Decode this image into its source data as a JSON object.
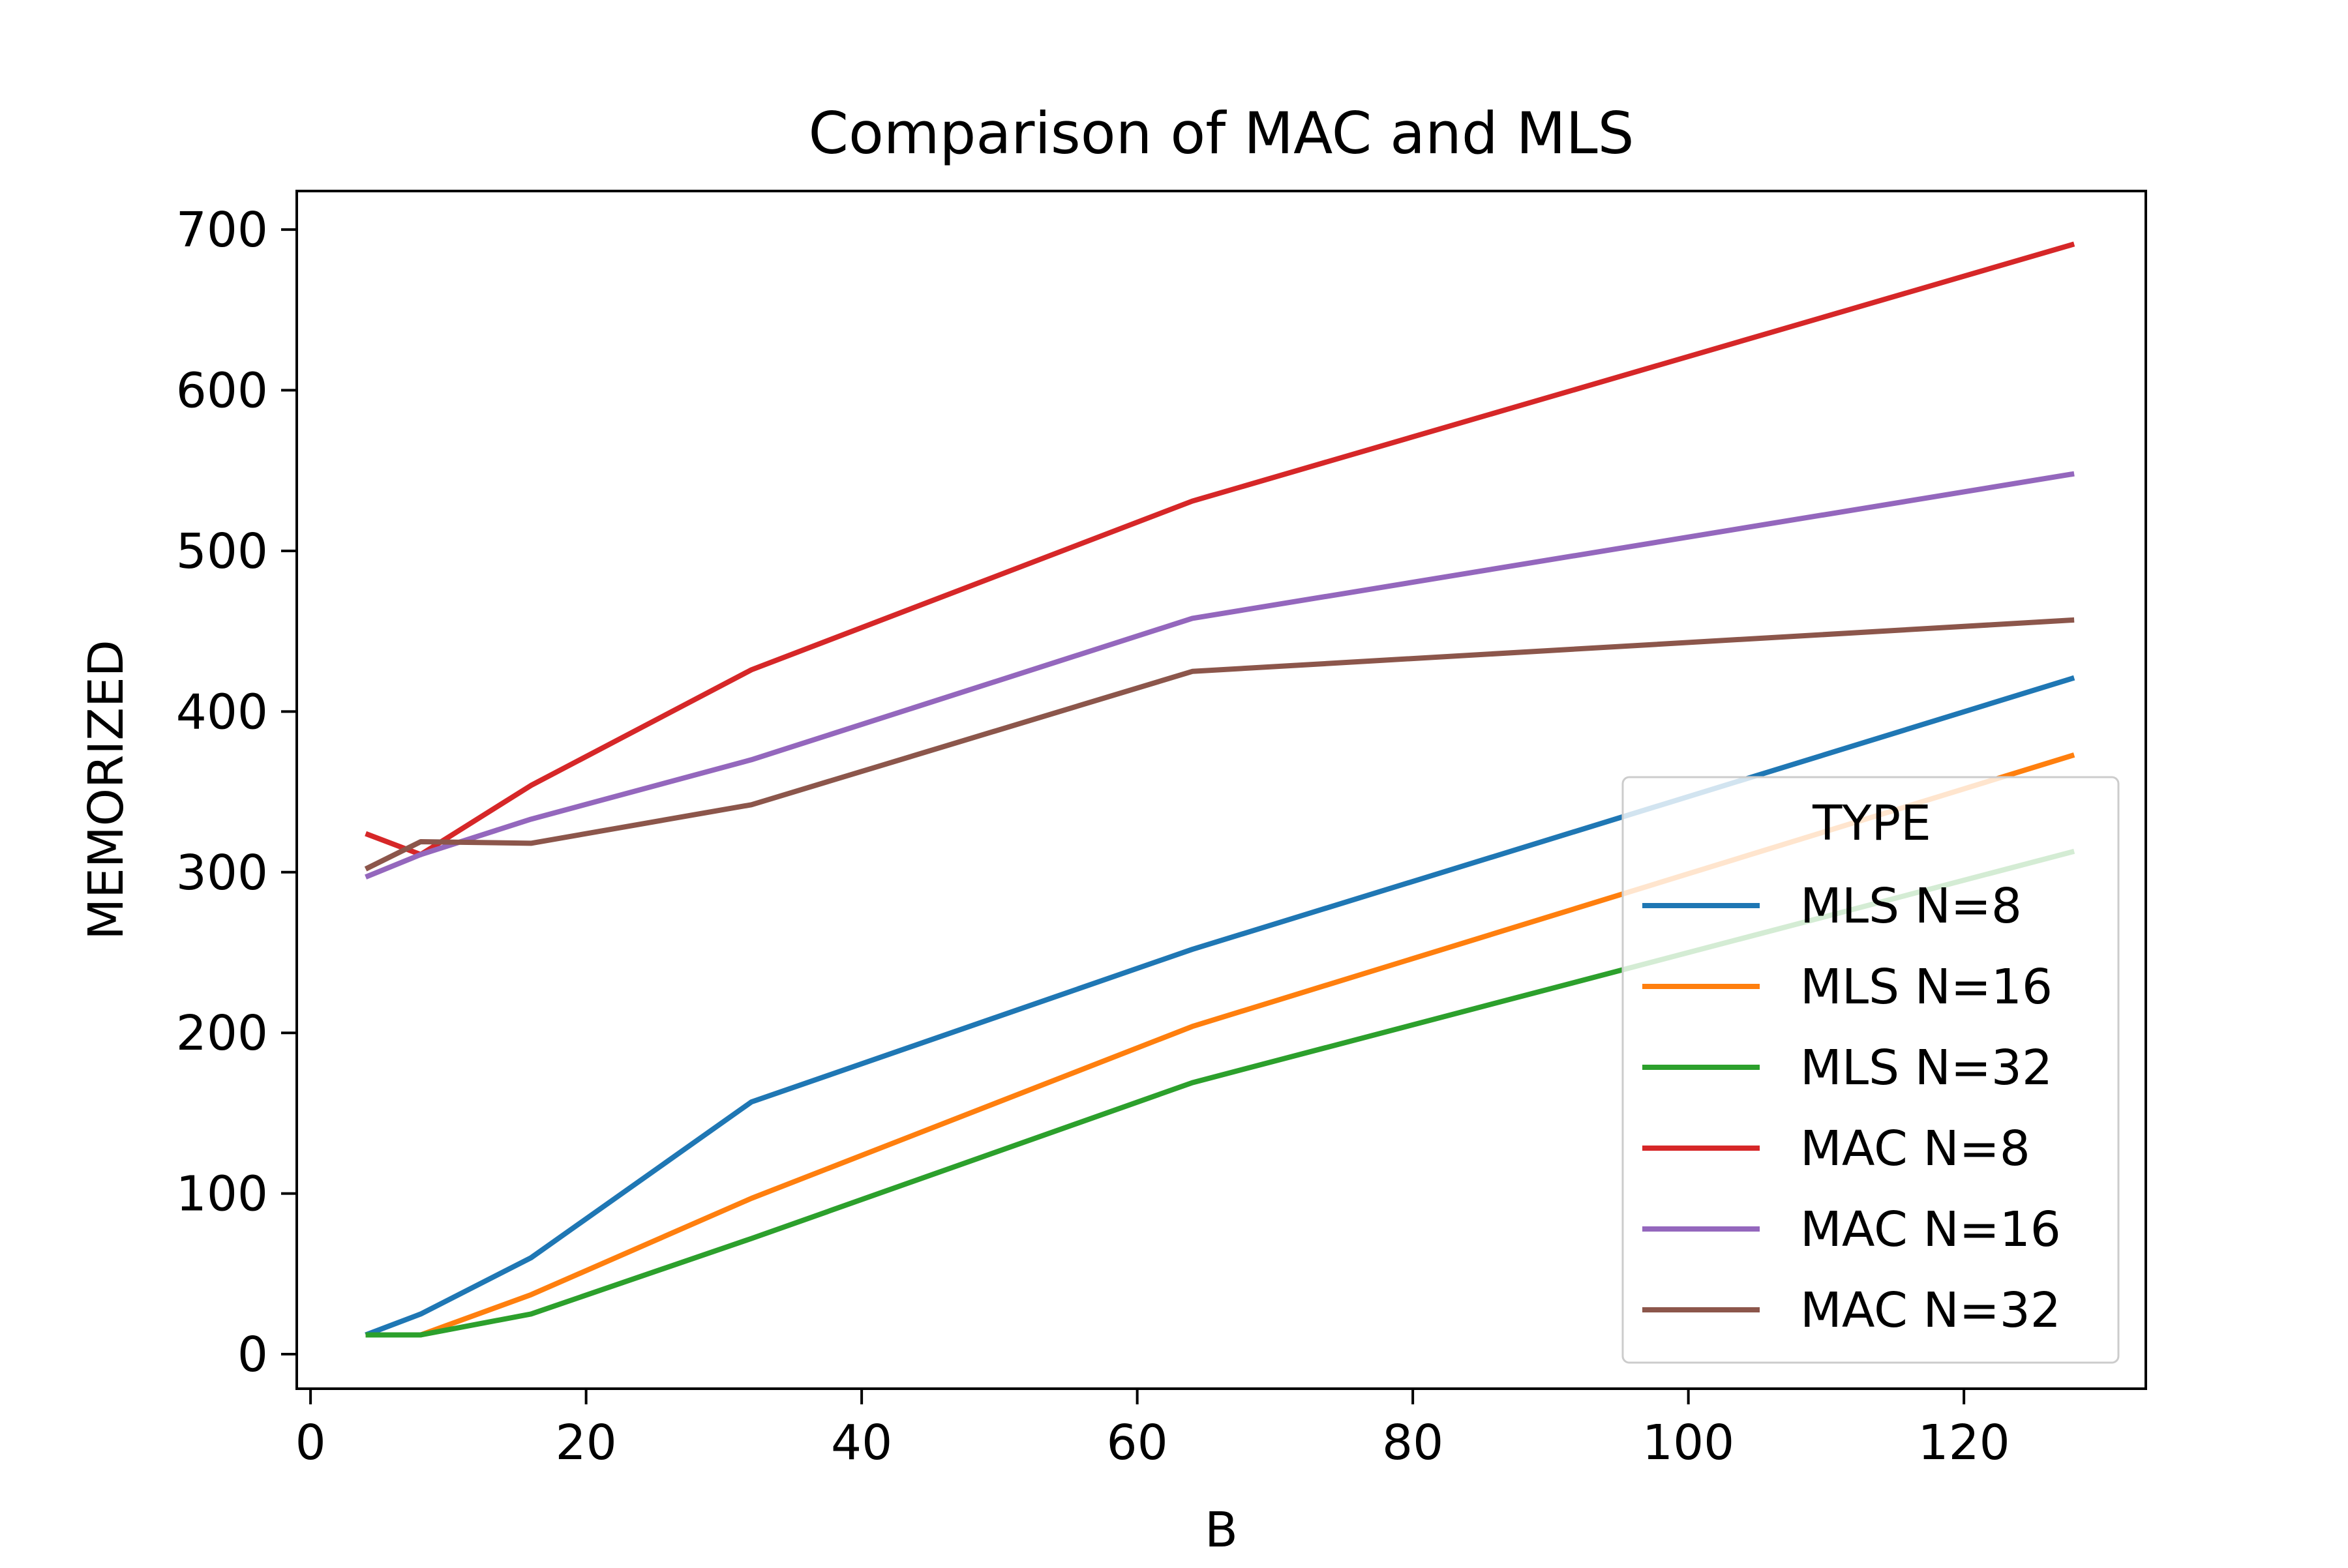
{
  "chart_data": {
    "type": "line",
    "title": "Comparison of MAC and MLS",
    "xlabel": "B",
    "ylabel": "MEMORIZED",
    "xlim": [
      -1,
      133.2
    ],
    "ylim": [
      -21.5,
      724
    ],
    "x_ticks": [
      0,
      20,
      40,
      60,
      80,
      100,
      120
    ],
    "y_ticks": [
      0,
      100,
      200,
      300,
      400,
      500,
      600,
      700
    ],
    "grid": false,
    "legend": {
      "title": "TYPE",
      "position": "lower-right"
    },
    "x": [
      4,
      8,
      16,
      32,
      64,
      128
    ],
    "series": [
      {
        "name": "MLS N=8",
        "color": "#1f77b4",
        "values": [
          12,
          25,
          60,
          157,
          252,
          421
        ]
      },
      {
        "name": "MLS N=16",
        "color": "#ff7f0e",
        "values": [
          12,
          12,
          37,
          97,
          204,
          373
        ]
      },
      {
        "name": "MLS N=32",
        "color": "#2ca02c",
        "values": [
          12,
          12,
          25,
          72,
          169,
          313
        ]
      },
      {
        "name": "MAC N=8",
        "color": "#d62728",
        "values": [
          324,
          311,
          354,
          426,
          531,
          691
        ]
      },
      {
        "name": "MAC N=16",
        "color": "#9467bd",
        "values": [
          297,
          311,
          333,
          370,
          458,
          548
        ]
      },
      {
        "name": "MAC N=32",
        "color": "#8c564b",
        "values": [
          302,
          319,
          318,
          342,
          425,
          457
        ]
      }
    ]
  }
}
